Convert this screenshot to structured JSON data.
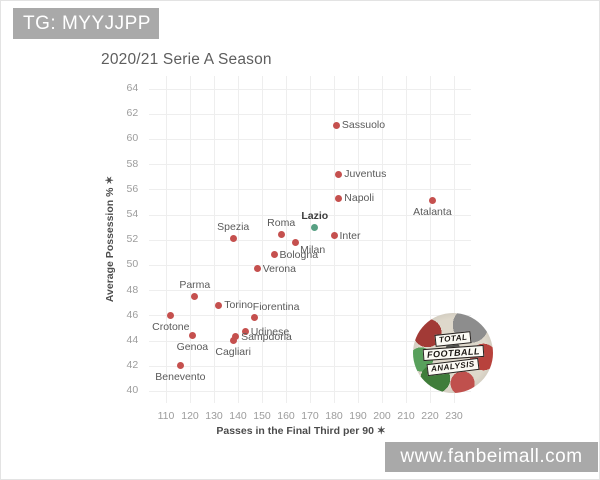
{
  "watermarks": {
    "top_left": "TG: MYYJJPP",
    "bottom_right": "www.fanbeimall.com"
  },
  "logo": {
    "name": "total-football-analysis",
    "lines": [
      "Total",
      "Football",
      "Analysis"
    ]
  },
  "colors": {
    "point": "#c5504e",
    "highlight_point": "#57a083",
    "grid": "#eeeeee",
    "badge_bg": "#a9a9a9",
    "badge_text": "#ffffff"
  },
  "chart_data": {
    "type": "scatter",
    "title": "2020/21 Serie A Season",
    "xlabel": "Passes in the Final Third per 90 ✶",
    "ylabel": "Average Possession % ✶",
    "xlim": [
      103,
      237
    ],
    "ylim": [
      39,
      65
    ],
    "x_ticks": [
      110,
      120,
      130,
      140,
      150,
      160,
      170,
      180,
      190,
      200,
      210,
      220,
      230
    ],
    "y_ticks": [
      40,
      42,
      44,
      46,
      48,
      50,
      52,
      54,
      56,
      58,
      60,
      62,
      64
    ],
    "grid": true,
    "legend": "none",
    "point_color": "#c5504e",
    "highlight_color": "#57a083",
    "points": [
      {
        "team": "Sassuolo",
        "x": 181,
        "y": 61.1,
        "label_pos": "right"
      },
      {
        "team": "Juventus",
        "x": 182,
        "y": 57.2,
        "label_pos": "right"
      },
      {
        "team": "Napoli",
        "x": 182,
        "y": 55.3,
        "label_pos": "right"
      },
      {
        "team": "Atalanta",
        "x": 221,
        "y": 55.1,
        "label_pos": "below"
      },
      {
        "team": "Lazio",
        "x": 172,
        "y": 53.0,
        "label_pos": "above",
        "highlight": true
      },
      {
        "team": "Roma",
        "x": 158,
        "y": 52.4,
        "label_pos": "above"
      },
      {
        "team": "Inter",
        "x": 180,
        "y": 52.3,
        "label_pos": "right"
      },
      {
        "team": "Spezia",
        "x": 138,
        "y": 52.1,
        "label_pos": "above"
      },
      {
        "team": "Milan",
        "x": 164,
        "y": 51.8,
        "label_pos": "below-right"
      },
      {
        "team": "Bologna",
        "x": 155,
        "y": 50.8,
        "label_pos": "right"
      },
      {
        "team": "Verona",
        "x": 148,
        "y": 49.7,
        "label_pos": "right"
      },
      {
        "team": "Parma",
        "x": 122,
        "y": 47.5,
        "label_pos": "above"
      },
      {
        "team": "Torino",
        "x": 132,
        "y": 46.8,
        "label_pos": "right"
      },
      {
        "team": "Crotone",
        "x": 112,
        "y": 46.0,
        "label_pos": "below"
      },
      {
        "team": "Fiorentina",
        "x": 147,
        "y": 45.8,
        "label_pos": "above-right"
      },
      {
        "team": "Udinese",
        "x": 143,
        "y": 44.7,
        "label_pos": "right"
      },
      {
        "team": "Genoa",
        "x": 121,
        "y": 44.4,
        "label_pos": "below"
      },
      {
        "team": "Sampdoria",
        "x": 139,
        "y": 44.3,
        "label_pos": "right"
      },
      {
        "team": "Cagliari",
        "x": 138,
        "y": 44.0,
        "label_pos": "below"
      },
      {
        "team": "Benevento",
        "x": 116,
        "y": 42.0,
        "label_pos": "below"
      }
    ]
  }
}
